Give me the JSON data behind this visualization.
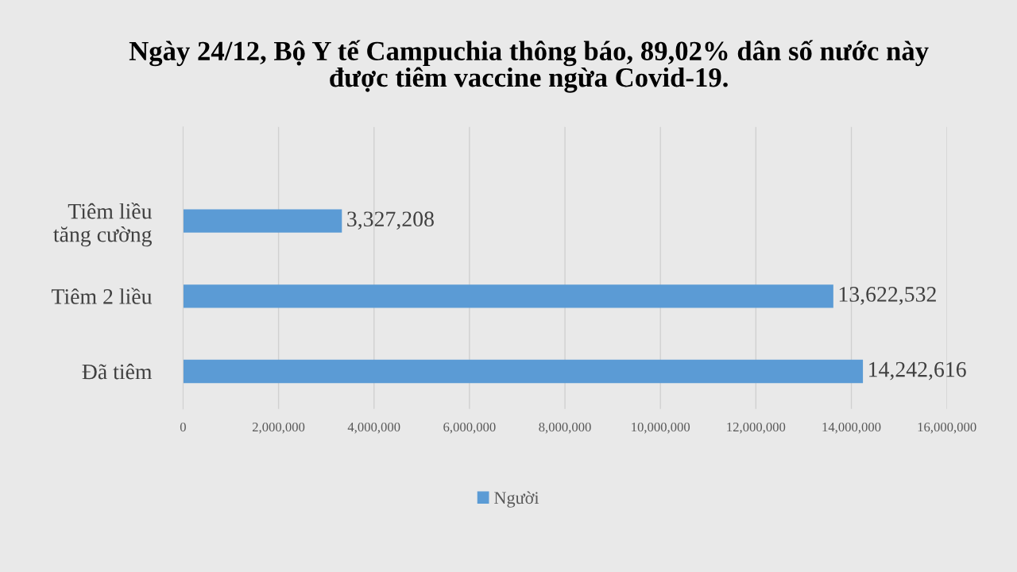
{
  "chart_data": {
    "type": "bar",
    "orientation": "horizontal",
    "title": "Ngày 24/12, Bộ Y tế Campuchia thông báo, 89,02% dân số nước này\nđược tiêm vaccine ngừa Covid-19.",
    "categories": [
      "Tiêm liều\ntăng cường",
      "Tiêm 2 liều",
      "Đã tiêm"
    ],
    "series": [
      {
        "name": "Người",
        "color": "#5b9bd5",
        "values": [
          3327208,
          13622532,
          14242616
        ],
        "value_labels": [
          "3,327,208",
          "13,622,532",
          "14,242,616"
        ]
      }
    ],
    "xlim": [
      0,
      16000000
    ],
    "xticks": [
      0,
      {
        "value": 2000000,
        "label": "2,000,000"
      },
      {
        "value": 4000000,
        "label": "4,000,000"
      },
      {
        "value": 6000000,
        "label": "6,000,000"
      },
      {
        "value": 8000000,
        "label": "8,000,000"
      },
      {
        "value": 10000000,
        "label": "10,000,000"
      },
      {
        "value": 12000000,
        "label": "12,000,000"
      },
      {
        "value": 14000000,
        "label": "14,000,000"
      },
      {
        "value": 16000000,
        "label": "16,000,000"
      }
    ],
    "grid": "x",
    "legend": "bottom"
  }
}
